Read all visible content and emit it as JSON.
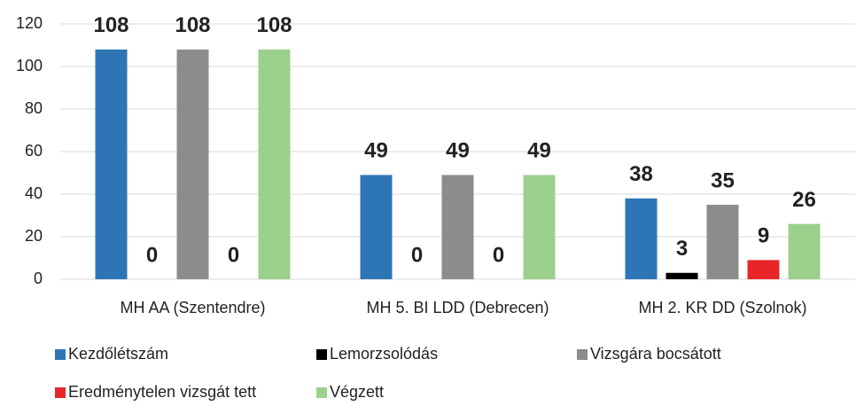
{
  "chart_data": {
    "type": "bar",
    "categories": [
      "MH AA (Szentendre)",
      "MH 5. BI LDD (Debrecen)",
      "MH 2. KR DD (Szolnok)"
    ],
    "series": [
      {
        "name": "Kezdőlétszám",
        "color": "#2e75b6",
        "values": [
          108,
          49,
          38
        ]
      },
      {
        "name": "Lemorzsolódás",
        "color": "#000000",
        "values": [
          0,
          0,
          3
        ]
      },
      {
        "name": "Vizsgára bocsátott",
        "color": "#8c8c8c",
        "values": [
          108,
          49,
          35
        ]
      },
      {
        "name": "Eredménytelen vizsgát tett",
        "color": "#e8262a",
        "values": [
          0,
          0,
          9
        ]
      },
      {
        "name": "Végzett",
        "color": "#9bd08d",
        "values": [
          108,
          49,
          26
        ]
      }
    ],
    "ylim": [
      0,
      120
    ],
    "yticks": [
      0,
      20,
      40,
      60,
      80,
      100,
      120
    ],
    "grid": true,
    "legend": "bottom"
  }
}
